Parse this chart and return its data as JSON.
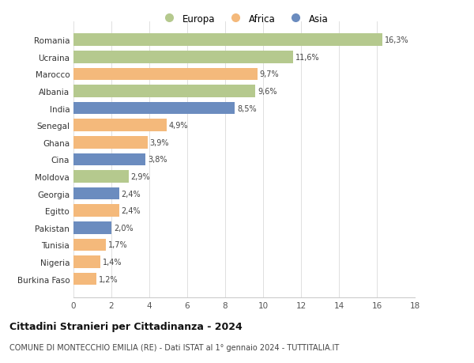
{
  "countries": [
    "Romania",
    "Ucraina",
    "Marocco",
    "Albania",
    "India",
    "Senegal",
    "Ghana",
    "Cina",
    "Moldova",
    "Georgia",
    "Egitto",
    "Pakistan",
    "Tunisia",
    "Nigeria",
    "Burkina Faso"
  ],
  "values": [
    16.3,
    11.6,
    9.7,
    9.6,
    8.5,
    4.9,
    3.9,
    3.8,
    2.9,
    2.4,
    2.4,
    2.0,
    1.7,
    1.4,
    1.2
  ],
  "labels": [
    "16,3%",
    "11,6%",
    "9,7%",
    "9,6%",
    "8,5%",
    "4,9%",
    "3,9%",
    "3,8%",
    "2,9%",
    "2,4%",
    "2,4%",
    "2,0%",
    "1,7%",
    "1,4%",
    "1,2%"
  ],
  "continents": [
    "Europa",
    "Europa",
    "Africa",
    "Europa",
    "Asia",
    "Africa",
    "Africa",
    "Asia",
    "Europa",
    "Asia",
    "Africa",
    "Asia",
    "Africa",
    "Africa",
    "Africa"
  ],
  "colors": {
    "Europa": "#b5c98e",
    "Africa": "#f4b97b",
    "Asia": "#6b8cbf"
  },
  "xlim": [
    0,
    18
  ],
  "xticks": [
    0,
    2,
    4,
    6,
    8,
    10,
    12,
    14,
    16,
    18
  ],
  "title": "Cittadini Stranieri per Cittadinanza - 2024",
  "subtitle": "COMUNE DI MONTECCHIO EMILIA (RE) - Dati ISTAT al 1° gennaio 2024 - TUTTITALIA.IT",
  "background_color": "#ffffff",
  "grid_color": "#e0e0e0"
}
